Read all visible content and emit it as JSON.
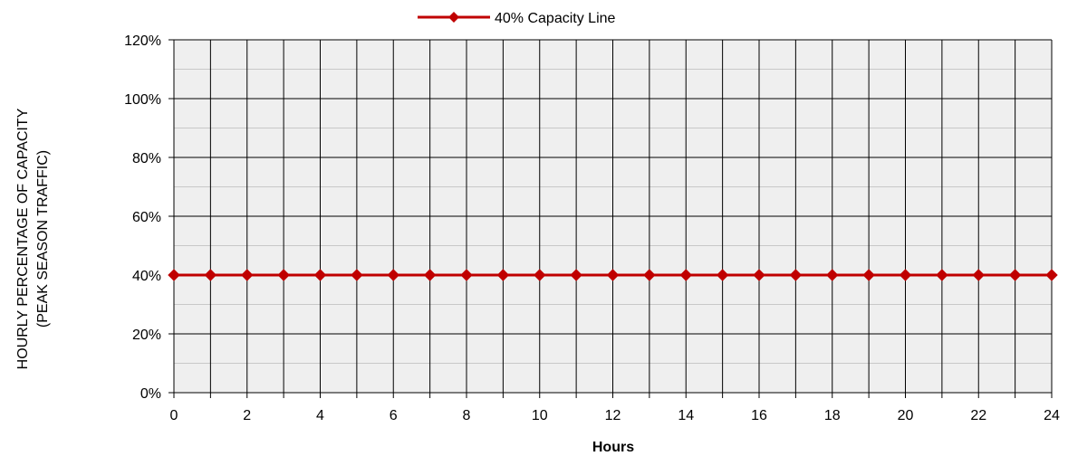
{
  "chart_data": {
    "type": "line",
    "title": "",
    "xlabel": "Hours",
    "ylabel_lines": [
      "HOURLY PERCENTAGE OF CAPACITY",
      "(PEAK SEASON TRAFFIC)"
    ],
    "xlim": [
      0,
      24
    ],
    "ylim": [
      0,
      120
    ],
    "x_ticks": [
      0,
      2,
      4,
      6,
      8,
      10,
      12,
      14,
      16,
      18,
      20,
      22,
      24
    ],
    "x_tick_labels": [
      "0",
      "2",
      "4",
      "6",
      "8",
      "10",
      "12",
      "14",
      "16",
      "18",
      "20",
      "22",
      "24"
    ],
    "y_ticks": [
      0,
      20,
      40,
      60,
      80,
      100,
      120
    ],
    "y_tick_labels": [
      "0%",
      "20%",
      "40%",
      "60%",
      "80%",
      "100%",
      "120%"
    ],
    "y_unit": "%",
    "grid": true,
    "legend_position": "top-center",
    "plot_background": "#efefef",
    "series": [
      {
        "name": "40% Capacity Line",
        "color": "#c00000",
        "marker": "diamond",
        "x": [
          0,
          1,
          2,
          3,
          4,
          5,
          6,
          7,
          8,
          9,
          10,
          11,
          12,
          13,
          14,
          15,
          16,
          17,
          18,
          19,
          20,
          21,
          22,
          23,
          24
        ],
        "values": [
          40,
          40,
          40,
          40,
          40,
          40,
          40,
          40,
          40,
          40,
          40,
          40,
          40,
          40,
          40,
          40,
          40,
          40,
          40,
          40,
          40,
          40,
          40,
          40,
          40
        ]
      }
    ]
  }
}
